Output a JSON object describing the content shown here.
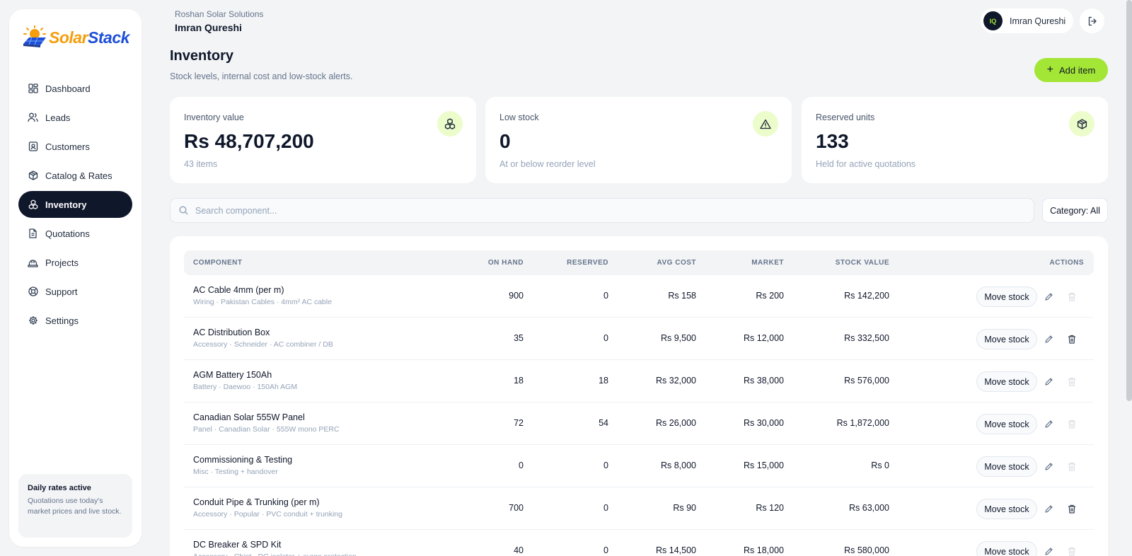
{
  "brand": {
    "name_part1": "Solar",
    "name_part2": "Stack"
  },
  "sidebar": {
    "items": [
      {
        "label": "Dashboard",
        "icon": "dashboard-icon"
      },
      {
        "label": "Leads",
        "icon": "users-icon"
      },
      {
        "label": "Customers",
        "icon": "contact-icon"
      },
      {
        "label": "Catalog & Rates",
        "icon": "package-icon"
      },
      {
        "label": "Inventory",
        "icon": "boxes-icon",
        "active": true
      },
      {
        "label": "Quotations",
        "icon": "document-icon"
      },
      {
        "label": "Projects",
        "icon": "hardhat-icon"
      },
      {
        "label": "Support",
        "icon": "lifebuoy-icon"
      },
      {
        "label": "Settings",
        "icon": "gear-icon"
      }
    ],
    "daily": {
      "title": "Daily rates active",
      "text": "Quotations use today's market prices and live stock."
    }
  },
  "header": {
    "org": "Roshan Solar Solutions",
    "user": "Imran Qureshi",
    "avatar_initials": "IQ",
    "chip_name": "Imran Qureshi"
  },
  "page": {
    "title": "Inventory",
    "subtitle": "Stock levels, internal cost and low-stock alerts.",
    "add_label": "Add item"
  },
  "stats": [
    {
      "label": "Inventory value",
      "value": "Rs 48,707,200",
      "sub": "43 items",
      "icon": "boxes-icon"
    },
    {
      "label": "Low stock",
      "value": "0",
      "sub": "At or below reorder level",
      "icon": "alert-icon"
    },
    {
      "label": "Reserved units",
      "value": "133",
      "sub": "Held for active quotations",
      "icon": "package-icon"
    }
  ],
  "search": {
    "placeholder": "Search component...",
    "category_label": "Category: All"
  },
  "table": {
    "columns": {
      "component": "COMPONENT",
      "on_hand": "ON HAND",
      "reserved": "RESERVED",
      "avg_cost": "AVG COST",
      "market": "MARKET",
      "stock_value": "STOCK VALUE",
      "actions": "ACTIONS"
    },
    "move_label": "Move stock",
    "rows": [
      {
        "name": "AC Cable 4mm (per m)",
        "meta": "Wiring · Pakistan Cables · 4mm² AC cable",
        "on_hand": "900",
        "reserved": "0",
        "avg_cost": "Rs 158",
        "market": "Rs 200",
        "stock_value": "Rs 142,200",
        "can_delete": false
      },
      {
        "name": "AC Distribution Box",
        "meta": "Accessory · Schneider · AC combiner / DB",
        "on_hand": "35",
        "reserved": "0",
        "avg_cost": "Rs 9,500",
        "market": "Rs 12,000",
        "stock_value": "Rs 332,500",
        "can_delete": true
      },
      {
        "name": "AGM Battery 150Ah",
        "meta": "Battery · Daewoo · 150Ah AGM",
        "on_hand": "18",
        "reserved": "18",
        "avg_cost": "Rs 32,000",
        "market": "Rs 38,000",
        "stock_value": "Rs 576,000",
        "can_delete": false
      },
      {
        "name": "Canadian Solar 555W Panel",
        "meta": "Panel · Canadian Solar · 555W mono PERC",
        "on_hand": "72",
        "reserved": "54",
        "avg_cost": "Rs 26,000",
        "market": "Rs 30,000",
        "stock_value": "Rs 1,872,000",
        "can_delete": false
      },
      {
        "name": "Commissioning & Testing",
        "meta": "Misc · Testing + handover",
        "on_hand": "0",
        "reserved": "0",
        "avg_cost": "Rs 8,000",
        "market": "Rs 15,000",
        "stock_value": "Rs 0",
        "can_delete": false
      },
      {
        "name": "Conduit Pipe & Trunking (per m)",
        "meta": "Accessory · Popular · PVC conduit + trunking",
        "on_hand": "700",
        "reserved": "0",
        "avg_cost": "Rs 90",
        "market": "Rs 120",
        "stock_value": "Rs 63,000",
        "can_delete": true
      },
      {
        "name": "DC Breaker & SPD Kit",
        "meta": "Accessory · Chint · DC isolator + surge protection",
        "on_hand": "40",
        "reserved": "0",
        "avg_cost": "Rs 14,500",
        "market": "Rs 18,000",
        "stock_value": "Rs 580,000",
        "can_delete": false
      }
    ]
  },
  "colors": {
    "accent": "#a3e635",
    "dark": "#0f172a",
    "accent_soft": "#ecfccb"
  }
}
